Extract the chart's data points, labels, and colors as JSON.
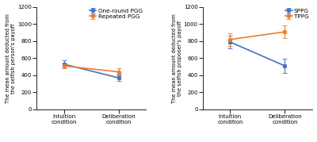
{
  "left": {
    "series": [
      {
        "label": "One-round PGG",
        "color": "#4472c4",
        "marker": "s",
        "x": [
          0,
          1
        ],
        "y": [
          530,
          370
        ],
        "yerr": [
          45,
          35
        ]
      },
      {
        "label": "Repeated PGG",
        "color": "#ed7d31",
        "marker": "o",
        "x": [
          0,
          1
        ],
        "y": [
          510,
          440
        ],
        "yerr": [
          25,
          45
        ]
      }
    ],
    "ylabel": "The mean amount deducted from\nthe selfish person's payoff",
    "xtick_labels": [
      "Intuition\ncondition",
      "Deliberation\ncondition"
    ],
    "ylim": [
      0,
      1200
    ],
    "yticks": [
      0,
      200,
      400,
      600,
      800,
      1000,
      1200
    ]
  },
  "right": {
    "series": [
      {
        "label": "SPPG",
        "color": "#4472c4",
        "marker": "s",
        "x": [
          0,
          1
        ],
        "y": [
          790,
          510
        ],
        "yerr": [
          75,
          85
        ]
      },
      {
        "label": "TPPG",
        "color": "#ed7d31",
        "marker": "o",
        "x": [
          0,
          1
        ],
        "y": [
          820,
          910
        ],
        "yerr": [
          75,
          75
        ]
      }
    ],
    "ylabel": "The mean amount deducted from\nthe selfish proposer's payoff",
    "xtick_labels": [
      "Intuition\ncondition",
      "Deliberation\ncondition"
    ],
    "ylim": [
      0,
      1200
    ],
    "yticks": [
      0,
      200,
      400,
      600,
      800,
      1000,
      1200
    ]
  },
  "background_color": "#ffffff",
  "label_font_size": 4.8,
  "legend_font_size": 5.2,
  "tick_font_size": 5.0,
  "linewidth": 1.2,
  "markersize": 3.5,
  "capsize": 2,
  "elinewidth": 0.8
}
